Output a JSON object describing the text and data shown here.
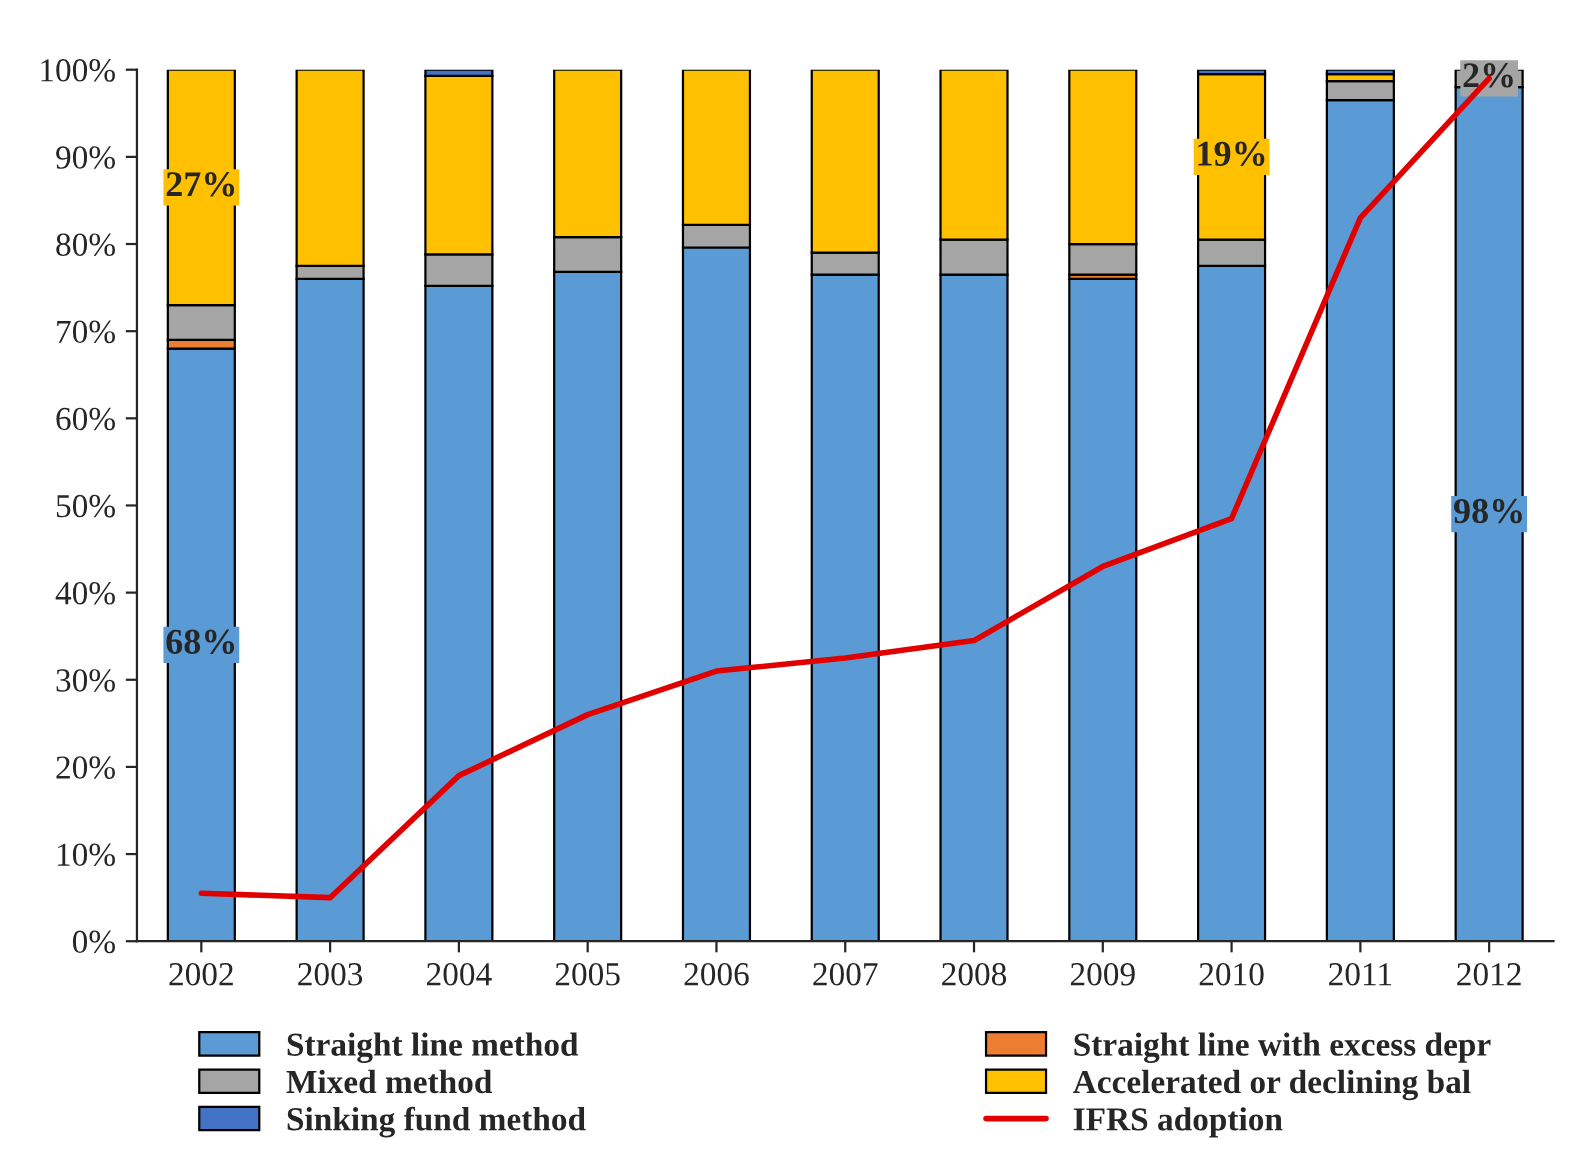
{
  "chart_data": {
    "type": "bar",
    "stacked": true,
    "categories": [
      "2002",
      "2003",
      "2004",
      "2005",
      "2006",
      "2007",
      "2008",
      "2009",
      "2010",
      "2011",
      "2012"
    ],
    "series": [
      {
        "name": "Straight line method",
        "color": "#5b9bd5",
        "values": [
          68,
          76,
          75.2,
          76.8,
          79.6,
          76.5,
          76.5,
          76,
          77.5,
          96.5,
          98
        ],
        "value_labels": [
          "68%",
          null,
          null,
          null,
          null,
          null,
          null,
          null,
          null,
          null,
          "98%"
        ]
      },
      {
        "name": "Straight line with excess depr",
        "color": "#ed7d31",
        "values": [
          1,
          null,
          null,
          null,
          null,
          null,
          null,
          0.5,
          null,
          null,
          null
        ]
      },
      {
        "name": "Mixed method",
        "color": "#a5a5a5",
        "values": [
          4,
          1.5,
          3.6,
          4,
          2.6,
          2.5,
          4,
          3.5,
          3,
          2.2,
          2
        ],
        "value_labels": [
          null,
          null,
          null,
          null,
          null,
          null,
          null,
          null,
          null,
          null,
          "2%"
        ]
      },
      {
        "name": "Accelerated or declining bal",
        "color": "#ffc000",
        "values": [
          27,
          22.5,
          20.5,
          19.2,
          17.8,
          21,
          19.5,
          20,
          19,
          0.8,
          null
        ],
        "value_labels": [
          "27%",
          null,
          null,
          null,
          null,
          null,
          null,
          null,
          "19%",
          null,
          null
        ]
      },
      {
        "name": "Sinking fund method",
        "color": "#4472c4",
        "values": [
          null,
          null,
          0.7,
          null,
          null,
          null,
          null,
          null,
          0.5,
          0.5,
          null
        ]
      },
      {
        "name": "IFRS adoption",
        "color": "#e00000",
        "type": "line",
        "values": [
          5.5,
          5,
          19,
          26,
          31,
          32.5,
          34.5,
          43,
          48.5,
          83,
          99
        ]
      }
    ],
    "ylim": [
      0,
      100
    ],
    "yticks": [
      {
        "value": 0,
        "label": "0%"
      },
      {
        "value": 10,
        "label": "10%"
      },
      {
        "value": 20,
        "label": "20%"
      },
      {
        "value": 30,
        "label": "30%"
      },
      {
        "value": 40,
        "label": "40%"
      },
      {
        "value": 50,
        "label": "50%"
      },
      {
        "value": 60,
        "label": "60%"
      },
      {
        "value": 70,
        "label": "70%"
      },
      {
        "value": 80,
        "label": "80%"
      },
      {
        "value": 90,
        "label": "90%"
      },
      {
        "value": 100,
        "label": "100%"
      }
    ],
    "legend": "bottom",
    "grid": false
  }
}
